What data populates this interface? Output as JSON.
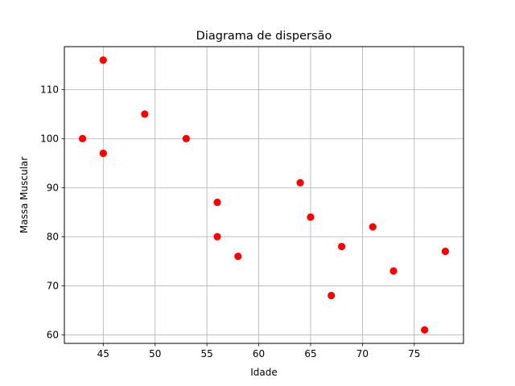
{
  "chart_data": {
    "type": "scatter",
    "title": "Diagrama de dispersão",
    "xlabel": "Idade",
    "ylabel": "Massa Muscular",
    "xlim": [
      41.25,
      79.75
    ],
    "ylim": [
      58.25,
      118.75
    ],
    "xticks": [
      45,
      50,
      55,
      60,
      65,
      70,
      75
    ],
    "yticks": [
      60,
      70,
      80,
      90,
      100,
      110
    ],
    "grid": true,
    "marker_color": "#ff0000",
    "grid_color": "#b0b0b0",
    "points": [
      {
        "x": 43,
        "y": 100
      },
      {
        "x": 45,
        "y": 116
      },
      {
        "x": 45,
        "y": 97
      },
      {
        "x": 49,
        "y": 105
      },
      {
        "x": 53,
        "y": 100
      },
      {
        "x": 56,
        "y": 87
      },
      {
        "x": 56,
        "y": 80
      },
      {
        "x": 58,
        "y": 76
      },
      {
        "x": 64,
        "y": 91
      },
      {
        "x": 65,
        "y": 84
      },
      {
        "x": 67,
        "y": 68
      },
      {
        "x": 68,
        "y": 78
      },
      {
        "x": 71,
        "y": 82
      },
      {
        "x": 73,
        "y": 73
      },
      {
        "x": 76,
        "y": 61
      },
      {
        "x": 78,
        "y": 77
      }
    ]
  }
}
